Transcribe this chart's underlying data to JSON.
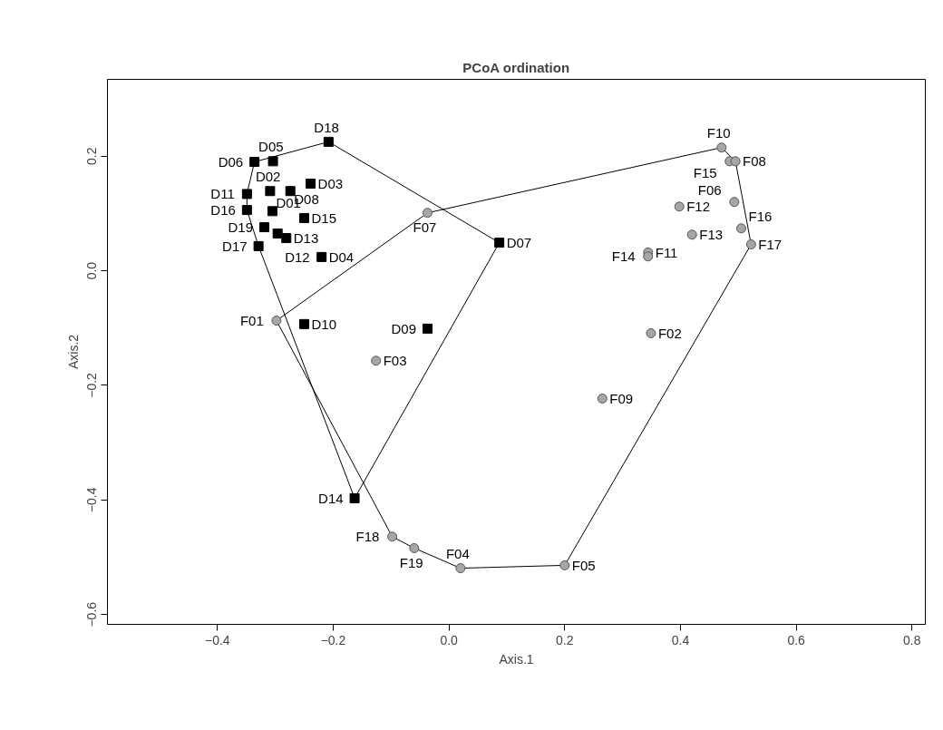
{
  "chart_data": {
    "type": "scatter",
    "title": "PCoA ordination",
    "xlabel": "Axis.1",
    "ylabel": "Axis.2",
    "xlim": [
      -0.59,
      0.823
    ],
    "ylim": [
      -0.617,
      0.334
    ],
    "xticks": [
      -0.4,
      -0.2,
      {
        "value": 0,
        "label": "0.0"
      },
      0.2,
      0.4,
      0.6,
      0.8
    ],
    "yticks": [
      -0.6,
      -0.4,
      -0.2,
      {
        "value": 0,
        "label": "0.0"
      },
      0.2
    ],
    "grid": false,
    "series": [
      {
        "type": "line",
        "color": "#000000",
        "x": [
          -0.349,
          -0.349,
          -0.336,
          -0.208,
          0.087
        ],
        "values": [
          0.106,
          0.134,
          0.19,
          0.225,
          0.049
        ]
      },
      {
        "type": "line",
        "color": "#000000",
        "x": [
          -0.349,
          -0.329,
          -0.163,
          0.087
        ],
        "values": [
          0.106,
          0.043,
          -0.397,
          0.049
        ]
      },
      {
        "type": "line",
        "color": "#000000",
        "x": [
          -0.298,
          -0.037,
          0.471,
          0.495,
          0.522
        ],
        "values": [
          -0.087,
          0.101,
          0.215,
          0.191,
          0.046
        ]
      },
      {
        "type": "line",
        "color": "#000000",
        "x": [
          -0.298,
          -0.098,
          -0.06,
          0.02,
          0.2,
          0.522
        ],
        "values": [
          -0.087,
          -0.464,
          -0.484,
          -0.519,
          -0.514,
          0.046
        ]
      },
      {
        "type": "scatter",
        "marker": "square",
        "color": "#000000",
        "x": [
          -0.336,
          -0.304,
          -0.208,
          -0.349,
          -0.309,
          -0.274,
          -0.239,
          -0.349,
          -0.305,
          -0.25,
          -0.319,
          -0.296,
          -0.281,
          -0.329,
          -0.22,
          0.087,
          -0.037,
          -0.25,
          -0.163
        ],
        "values": [
          0.19,
          0.191,
          0.225,
          0.134,
          0.139,
          0.139,
          0.152,
          0.106,
          0.104,
          0.092,
          0.076,
          0.065,
          0.057,
          0.043,
          0.024,
          0.049,
          -0.101,
          -0.093,
          -0.397
        ],
        "value_labels": [
          "D06",
          "D05",
          "D18",
          "D11",
          "D02",
          "D08",
          "D03",
          "D16",
          "D01",
          "D15",
          "D19",
          "D12",
          "D13",
          "D17",
          "D04",
          "D07",
          "D09",
          "D10",
          "D14"
        ]
      },
      {
        "type": "scatter",
        "marker": "circle",
        "color": "#a6a6a6",
        "x": [
          0.471,
          0.485,
          0.495,
          0.398,
          0.493,
          0.42,
          0.505,
          0.522,
          0.344,
          0.344,
          -0.037,
          -0.298,
          -0.126,
          0.349,
          0.265,
          -0.098,
          -0.06,
          0.02,
          0.2
        ],
        "values": [
          0.215,
          0.191,
          0.191,
          0.112,
          0.12,
          0.063,
          0.074,
          0.046,
          0.032,
          0.025,
          0.101,
          -0.087,
          -0.157,
          -0.109,
          -0.223,
          -0.464,
          -0.484,
          -0.519,
          -0.514
        ],
        "value_labels": [
          "F10",
          "F15",
          "F08",
          "F12",
          "F06",
          "F13",
          "F16",
          "F17",
          "F11",
          "F14",
          "F07",
          "F01",
          "F03",
          "F02",
          "F09",
          "F18",
          "F19",
          "F04",
          "F05"
        ]
      }
    ]
  }
}
